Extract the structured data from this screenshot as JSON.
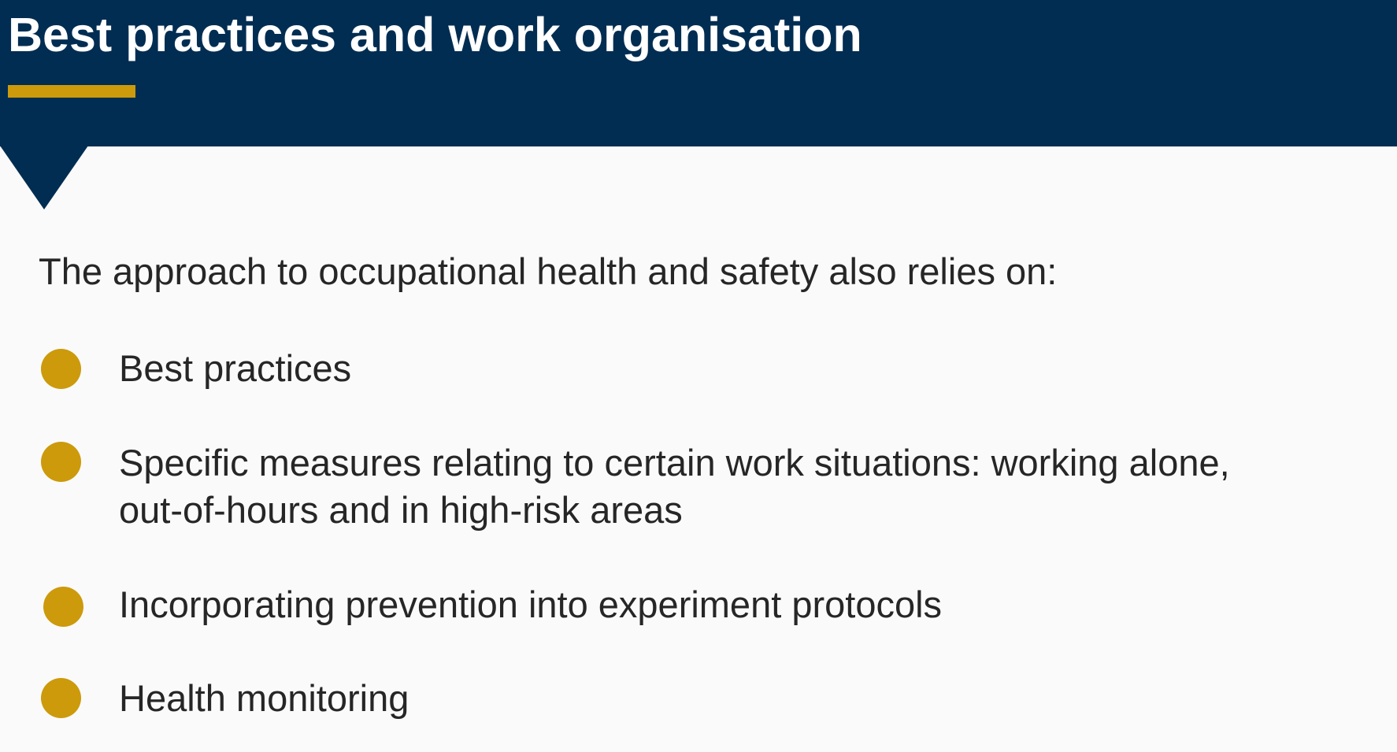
{
  "slide": {
    "title": "Best practices and work organisation",
    "intro": "The approach to occupational health and safety also relies on:",
    "bullets": [
      "Best practices",
      "Specific measures relating to certain work situations: working alone, out-of-hours and in high-risk areas",
      "Incorporating prevention into experiment protocols",
      "Health monitoring"
    ]
  },
  "colors": {
    "header_background": "#022d52",
    "accent": "#cc9a0b",
    "text": "#262626",
    "page_background": "#fafafa"
  },
  "icons": {
    "bullet": "filled-circle-icon"
  }
}
